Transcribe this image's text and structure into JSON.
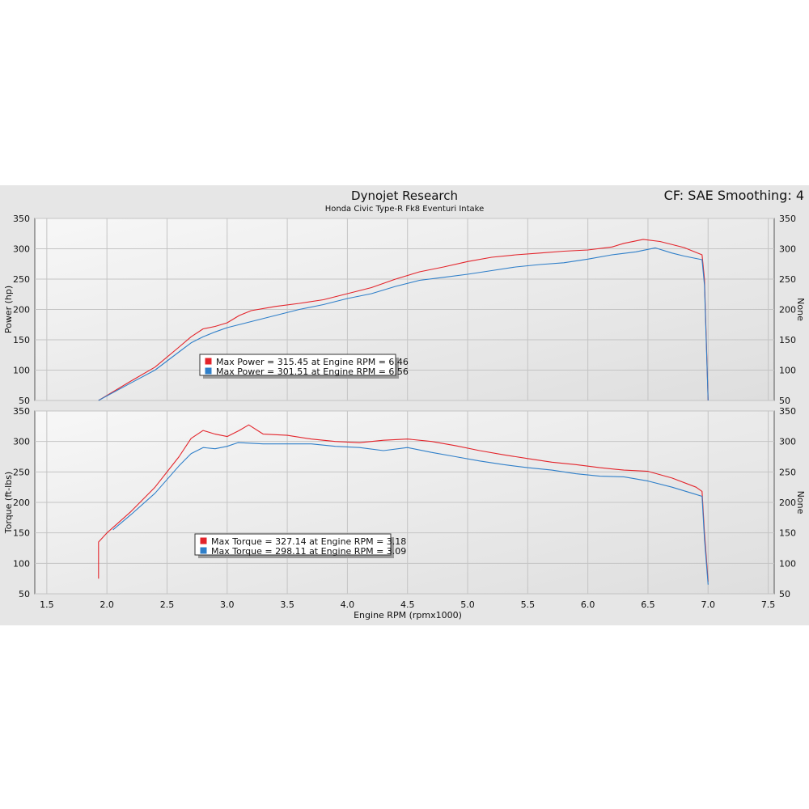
{
  "header": {
    "title": "Dynojet Research",
    "subtitle": "Honda Civic Type-R Fk8 Eventuri Intake",
    "cf_label": "CF: SAE Smoothing: 4"
  },
  "colors": {
    "run1": "#e3242b",
    "run2": "#2f7fc9",
    "panel_bg": "#e6e6e6",
    "plot_bg": "#ececec"
  },
  "chart_data": [
    {
      "type": "line",
      "xlabel": "Engine RPM (rpmx1000)",
      "ylabel": "Power (hp)",
      "right_ylabel": "None",
      "xlim": [
        1.4,
        7.55
      ],
      "ylim": [
        50,
        350
      ],
      "x_ticks": [
        1.5,
        2.0,
        2.5,
        3.0,
        3.5,
        4.0,
        4.5,
        5.0,
        5.5,
        6.0,
        6.5,
        7.0,
        7.5
      ],
      "y_ticks": [
        50,
        100,
        150,
        200,
        250,
        300,
        350
      ],
      "grid": true,
      "legend_position": "middle-left",
      "legend": [
        "Max Power = 315.45 at Engine RPM = 6.46",
        "Max Power = 301.51 at Engine RPM = 6.56"
      ],
      "series": [
        {
          "color": "#e3242b",
          "x": [
            1.93,
            2.2,
            2.4,
            2.6,
            2.7,
            2.8,
            2.9,
            3.0,
            3.1,
            3.2,
            3.4,
            3.6,
            3.8,
            4.0,
            4.2,
            4.4,
            4.6,
            4.8,
            5.0,
            5.2,
            5.4,
            5.6,
            5.8,
            6.0,
            6.2,
            6.3,
            6.46,
            6.6,
            6.8,
            6.95,
            6.97,
            7.0
          ],
          "y": [
            50,
            82,
            105,
            138,
            155,
            168,
            172,
            178,
            190,
            198,
            205,
            210,
            216,
            226,
            236,
            250,
            262,
            270,
            279,
            286,
            290,
            293,
            296,
            298,
            303,
            309,
            315.45,
            312,
            302,
            290,
            250,
            50
          ]
        },
        {
          "color": "#2f7fc9",
          "x": [
            1.93,
            2.2,
            2.4,
            2.6,
            2.7,
            2.8,
            2.9,
            3.0,
            3.2,
            3.4,
            3.6,
            3.8,
            4.0,
            4.2,
            4.4,
            4.6,
            4.8,
            5.0,
            5.2,
            5.4,
            5.6,
            5.8,
            6.0,
            6.2,
            6.4,
            6.56,
            6.7,
            6.8,
            6.95,
            6.97,
            7.0
          ],
          "y": [
            50,
            79,
            100,
            130,
            145,
            155,
            163,
            170,
            180,
            190,
            200,
            208,
            218,
            226,
            238,
            248,
            253,
            258,
            264,
            270,
            274,
            277,
            283,
            290,
            295,
            301.51,
            293,
            288,
            282,
            240,
            50
          ]
        }
      ]
    },
    {
      "type": "line",
      "xlabel": "Engine RPM (rpmx1000)",
      "ylabel": "Torque (ft-lbs)",
      "right_ylabel": "None",
      "xlim": [
        1.4,
        7.55
      ],
      "ylim": [
        50,
        350
      ],
      "x_ticks": [
        1.5,
        2.0,
        2.5,
        3.0,
        3.5,
        4.0,
        4.5,
        5.0,
        5.5,
        6.0,
        6.5,
        7.0,
        7.5
      ],
      "y_ticks": [
        50,
        100,
        150,
        200,
        250,
        300,
        350
      ],
      "grid": true,
      "legend_position": "middle-left",
      "legend": [
        "Max Torque = 327.14 at Engine RPM = 3.18",
        "Max Torque = 298.11 at Engine RPM = 3.09"
      ],
      "series": [
        {
          "color": "#e3242b",
          "x": [
            1.93,
            1.93,
            2.0,
            2.2,
            2.4,
            2.6,
            2.7,
            2.8,
            2.9,
            3.0,
            3.1,
            3.18,
            3.3,
            3.5,
            3.7,
            3.9,
            4.1,
            4.3,
            4.5,
            4.7,
            4.9,
            5.1,
            5.3,
            5.5,
            5.7,
            5.9,
            6.1,
            6.3,
            6.5,
            6.7,
            6.9,
            6.95,
            6.97,
            7.0
          ],
          "y": [
            75,
            135,
            150,
            185,
            225,
            275,
            305,
            318,
            312,
            308,
            318,
            327.14,
            312,
            310,
            304,
            300,
            298,
            302,
            304,
            300,
            293,
            285,
            278,
            272,
            266,
            262,
            257,
            253,
            251,
            240,
            225,
            218,
            150,
            70
          ]
        },
        {
          "color": "#2f7fc9",
          "x": [
            2.05,
            2.2,
            2.4,
            2.6,
            2.7,
            2.8,
            2.9,
            3.0,
            3.09,
            3.3,
            3.5,
            3.7,
            3.9,
            4.1,
            4.3,
            4.5,
            4.7,
            4.9,
            5.1,
            5.3,
            5.5,
            5.7,
            5.9,
            6.1,
            6.3,
            6.5,
            6.7,
            6.9,
            6.95,
            6.97,
            7.0
          ],
          "y": [
            155,
            180,
            215,
            260,
            280,
            290,
            288,
            292,
            298.11,
            296,
            296,
            296,
            292,
            290,
            285,
            290,
            282,
            275,
            268,
            262,
            257,
            253,
            247,
            243,
            242,
            235,
            225,
            213,
            210,
            140,
            65
          ]
        }
      ]
    }
  ]
}
